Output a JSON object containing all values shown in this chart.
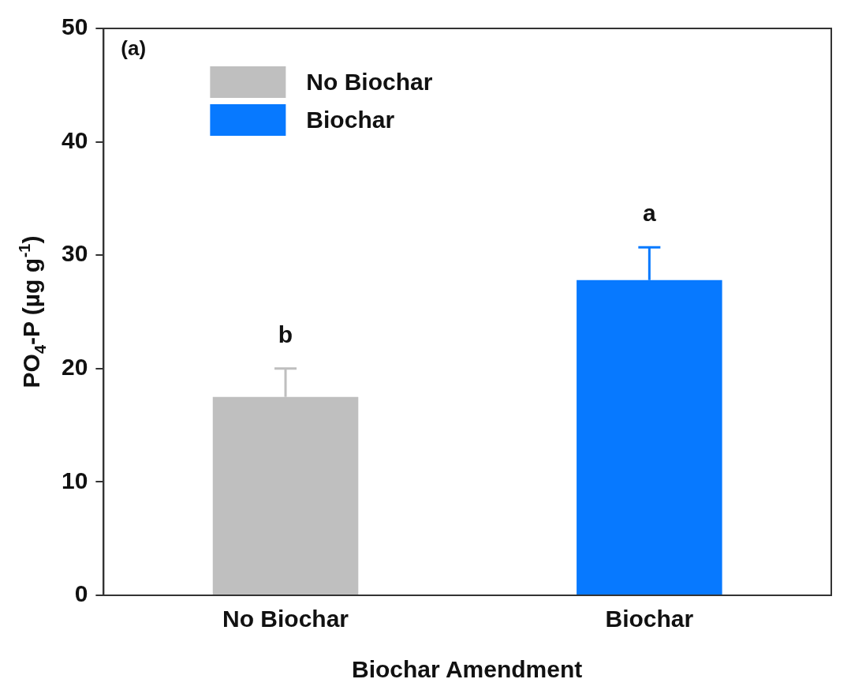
{
  "chart_data": {
    "type": "bar",
    "categories": [
      "No Biochar",
      "Biochar"
    ],
    "series": [
      {
        "name": "No Biochar",
        "color": "#bfbfbf",
        "values": [
          17.5,
          null
        ],
        "errors": [
          [
            17.5,
            20.0
          ],
          null
        ]
      },
      {
        "name": "Biochar",
        "color": "#0779ff",
        "values": [
          null,
          27.8
        ],
        "errors": [
          null,
          [
            27.8,
            30.7
          ]
        ]
      }
    ],
    "xlabel": "Biochar Amendment",
    "ylabel": "PO$_{4}$-P (µg g$^{-1}$)",
    "ylim": [
      0,
      50
    ],
    "yticks": [
      0,
      10,
      20,
      30,
      40,
      50
    ],
    "annotations": [
      "(a)",
      "b",
      "a"
    ],
    "legend": "top left",
    "grid": false
  }
}
